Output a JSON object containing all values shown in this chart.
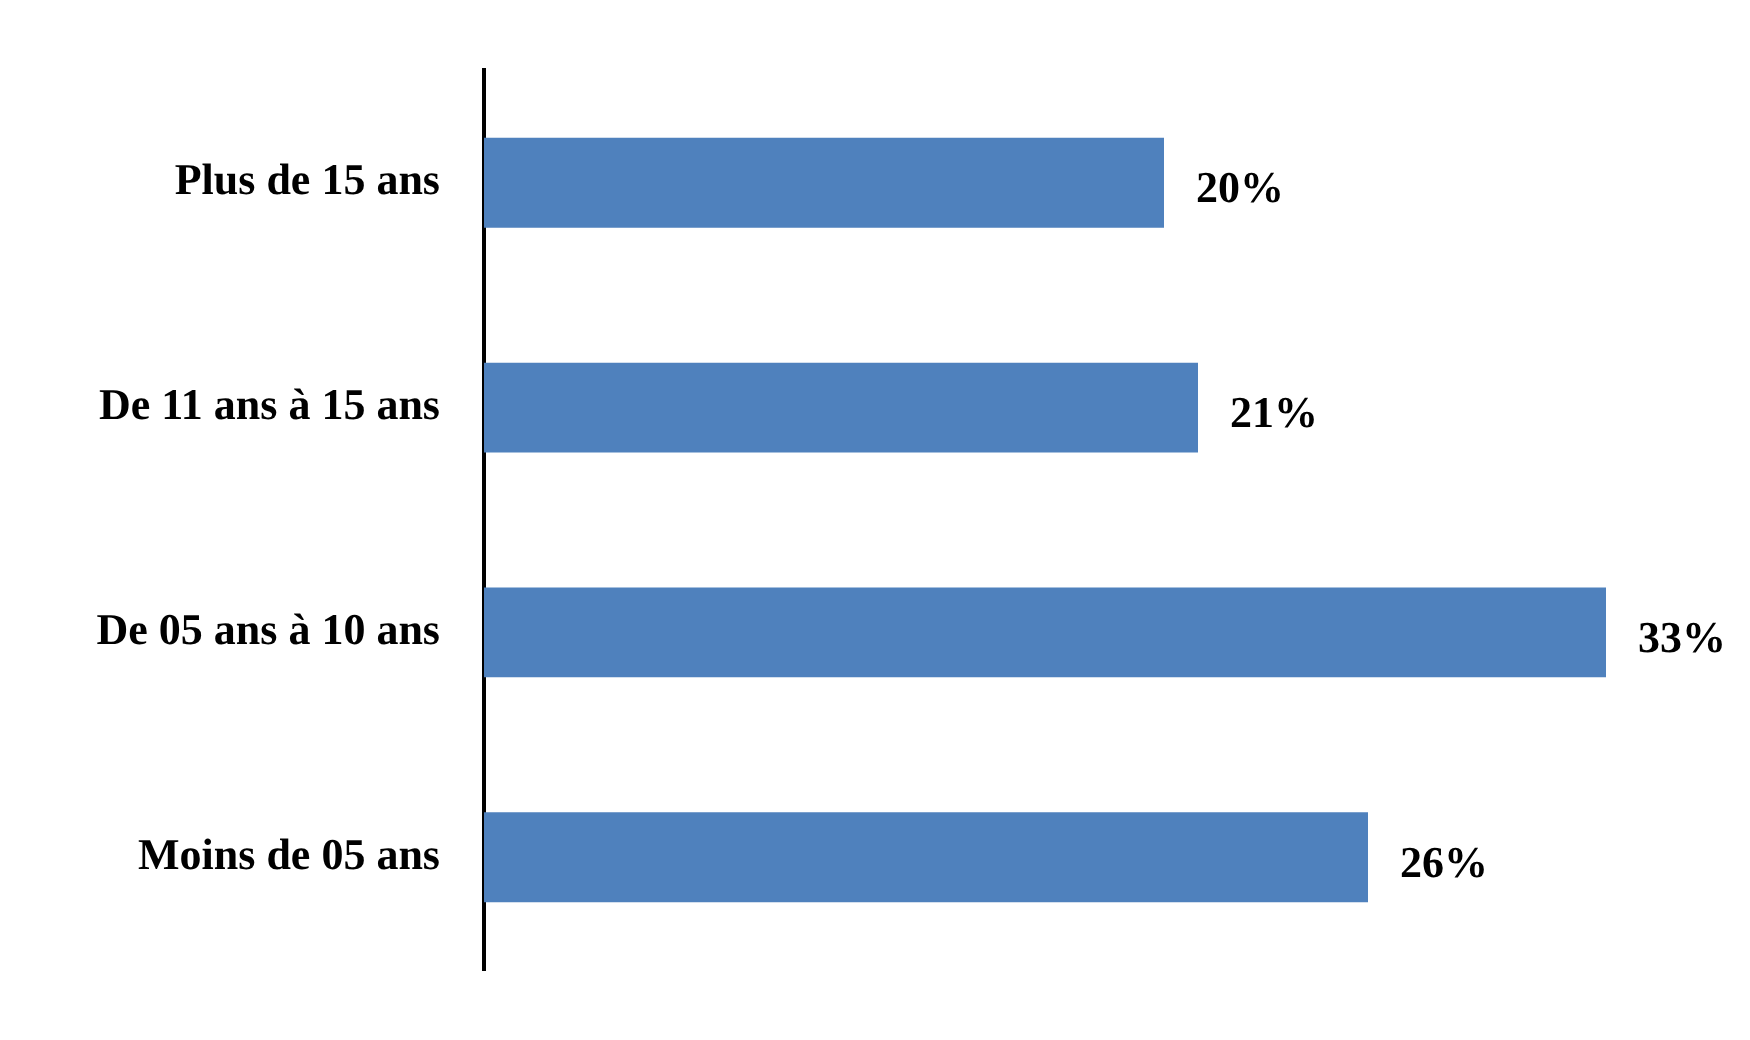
{
  "chart_data": {
    "type": "bar",
    "orientation": "horizontal",
    "categories": [
      "Plus de 15 ans",
      "De 11 ans à 15 ans",
      "De 05 ans à 10 ans",
      "Moins de 05 ans"
    ],
    "values": [
      20,
      21,
      33,
      26
    ],
    "value_labels": [
      "20%",
      "21%",
      "33%",
      "26%"
    ],
    "color": "#4f81bd",
    "tick_labels": "y"
  }
}
